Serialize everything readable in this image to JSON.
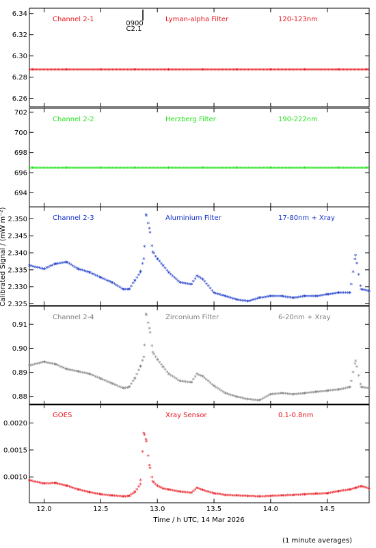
{
  "figure": {
    "xlabel": "Time / h UTC, 14 Mar 2026",
    "ylabel": "Calibrated Signal / (mW m⁻²)",
    "footnote": "(1 minute averages)",
    "marker_label_top": "0900",
    "marker_label_bottom": "C2.1"
  },
  "colors": {
    "red": "#e8141c",
    "green": "#22e21a",
    "blue": "#1433c8",
    "gray": "#7f7f7f"
  },
  "chart_data": [
    {
      "type": "scatter",
      "channel": "Channel 2-1",
      "filter": "Lyman-alpha Filter",
      "band": "120-123nm",
      "color": "red",
      "xlim": [
        11.87,
        14.87
      ],
      "ylim": [
        6.252,
        6.345
      ],
      "yticks": [
        6.26,
        6.28,
        6.3,
        6.32,
        6.34
      ],
      "ytick_labels": [
        "6.26",
        "6.28",
        "6.30",
        "6.32",
        "6.34"
      ],
      "x": [
        11.9,
        12.2,
        12.5,
        12.8,
        13.1,
        13.4,
        13.7,
        14.0,
        14.3,
        14.6,
        14.85
      ],
      "y": [
        6.2865,
        6.2865,
        6.2865,
        6.2865,
        6.2865,
        6.2865,
        6.2865,
        6.2865,
        6.2865,
        6.2865,
        6.2865
      ]
    },
    {
      "type": "scatter",
      "channel": "Channel 2-2",
      "filter": "Herzberg Filter",
      "band": "190-222nm",
      "color": "green",
      "xlim": [
        11.87,
        14.87
      ],
      "ylim": [
        692.6,
        702.4
      ],
      "yticks": [
        694,
        696,
        698,
        700,
        702
      ],
      "ytick_labels": [
        "694",
        "696",
        "698",
        "700",
        "702"
      ],
      "x": [
        11.9,
        12.2,
        12.5,
        12.8,
        13.1,
        13.4,
        13.7,
        14.0,
        14.3,
        14.6,
        14.85
      ],
      "y": [
        696.4,
        696.4,
        696.4,
        696.4,
        696.4,
        696.4,
        696.4,
        696.4,
        696.4,
        696.4,
        696.4
      ]
    },
    {
      "type": "scatter",
      "channel": "Channel 2-3",
      "filter": "Aluminium Filter",
      "band": "17-80nm + Xray",
      "color": "blue",
      "xlim": [
        11.87,
        14.87
      ],
      "ylim": [
        2.3245,
        2.3535
      ],
      "yticks": [
        2.325,
        2.33,
        2.335,
        2.34,
        2.345,
        2.35
      ],
      "ytick_labels": [
        "2.325",
        "2.330",
        "2.335",
        "2.340",
        "2.345",
        "2.350"
      ],
      "x": [
        11.87,
        12.0,
        12.1,
        12.2,
        12.3,
        12.4,
        12.5,
        12.6,
        12.7,
        12.75,
        12.8,
        12.85,
        12.88,
        12.9,
        12.93,
        12.96,
        13.0,
        13.05,
        13.1,
        13.2,
        13.3,
        13.35,
        13.4,
        13.5,
        13.6,
        13.7,
        13.8,
        13.9,
        14.0,
        14.1,
        14.2,
        14.3,
        14.4,
        14.5,
        14.6,
        14.7,
        14.75,
        14.8,
        14.87
      ],
      "y": [
        2.336,
        2.335,
        2.3365,
        2.337,
        2.335,
        2.334,
        2.3325,
        2.331,
        2.329,
        2.329,
        2.3315,
        2.334,
        2.338,
        2.351,
        2.347,
        2.34,
        2.338,
        2.336,
        2.334,
        2.331,
        2.3305,
        2.333,
        2.332,
        2.328,
        2.327,
        2.326,
        2.3255,
        2.3265,
        2.327,
        2.327,
        2.3265,
        2.327,
        2.327,
        2.3275,
        2.328,
        2.328,
        2.339,
        2.329,
        2.3285
      ]
    },
    {
      "type": "scatter",
      "channel": "Channel 2-4",
      "filter": "Zirconium Filter",
      "band": "6-20nm + Xray",
      "color": "gray",
      "xlim": [
        11.87,
        14.87
      ],
      "ylim": [
        0.8765,
        0.9175
      ],
      "yticks": [
        0.88,
        0.89,
        0.9,
        0.91
      ],
      "ytick_labels": [
        "0.88",
        "0.89",
        "0.90",
        "0.91"
      ],
      "x": [
        11.87,
        12.0,
        12.1,
        12.2,
        12.3,
        12.4,
        12.5,
        12.6,
        12.7,
        12.75,
        12.8,
        12.85,
        12.88,
        12.9,
        12.93,
        12.96,
        13.0,
        13.05,
        13.1,
        13.2,
        13.3,
        13.35,
        13.4,
        13.5,
        13.6,
        13.7,
        13.8,
        13.9,
        14.0,
        14.1,
        14.2,
        14.3,
        14.4,
        14.5,
        14.6,
        14.7,
        14.75,
        14.8,
        14.87
      ],
      "y": [
        0.8925,
        0.894,
        0.893,
        0.891,
        0.89,
        0.889,
        0.887,
        0.885,
        0.883,
        0.8835,
        0.887,
        0.892,
        0.896,
        0.914,
        0.908,
        0.898,
        0.895,
        0.892,
        0.889,
        0.886,
        0.8855,
        0.889,
        0.888,
        0.884,
        0.881,
        0.8795,
        0.8785,
        0.878,
        0.8805,
        0.881,
        0.8805,
        0.881,
        0.8815,
        0.882,
        0.8825,
        0.8835,
        0.8945,
        0.8835,
        0.883
      ]
    },
    {
      "type": "scatter",
      "channel": "GOES",
      "filter": "Xray Sensor",
      "band": "0.1-0.8nm",
      "color": "red",
      "xlim": [
        11.87,
        14.87
      ],
      "ylim": [
        0.00052,
        0.00235
      ],
      "yticks": [
        0.001,
        0.0015,
        0.002
      ],
      "ytick_labels": [
        "0.0010",
        "0.0015",
        "0.0020"
      ],
      "x": [
        11.87,
        12.0,
        12.1,
        12.2,
        12.3,
        12.4,
        12.5,
        12.6,
        12.7,
        12.75,
        12.8,
        12.85,
        12.88,
        12.9,
        12.93,
        12.96,
        13.0,
        13.05,
        13.1,
        13.2,
        13.3,
        13.35,
        13.4,
        13.5,
        13.6,
        13.7,
        13.8,
        13.9,
        14.0,
        14.1,
        14.2,
        14.3,
        14.4,
        14.5,
        14.6,
        14.7,
        14.75,
        14.8,
        14.87
      ],
      "y": [
        0.00092,
        0.00086,
        0.00087,
        0.00082,
        0.00075,
        0.0007,
        0.00066,
        0.00064,
        0.00062,
        0.00063,
        0.0007,
        0.00085,
        0.0018,
        0.00168,
        0.0012,
        0.0009,
        0.00082,
        0.00077,
        0.00075,
        0.00071,
        0.00069,
        0.00078,
        0.00074,
        0.00068,
        0.00065,
        0.00064,
        0.00063,
        0.00062,
        0.00063,
        0.00064,
        0.00065,
        0.00066,
        0.00067,
        0.00068,
        0.00072,
        0.00075,
        0.00078,
        0.00081,
        0.00077
      ]
    }
  ],
  "xaxis": {
    "ticks": [
      12.0,
      12.5,
      13.0,
      13.5,
      14.0,
      14.5
    ],
    "tick_labels": [
      "12.0",
      "12.5",
      "13.0",
      "13.5",
      "14.0",
      "14.5"
    ]
  }
}
